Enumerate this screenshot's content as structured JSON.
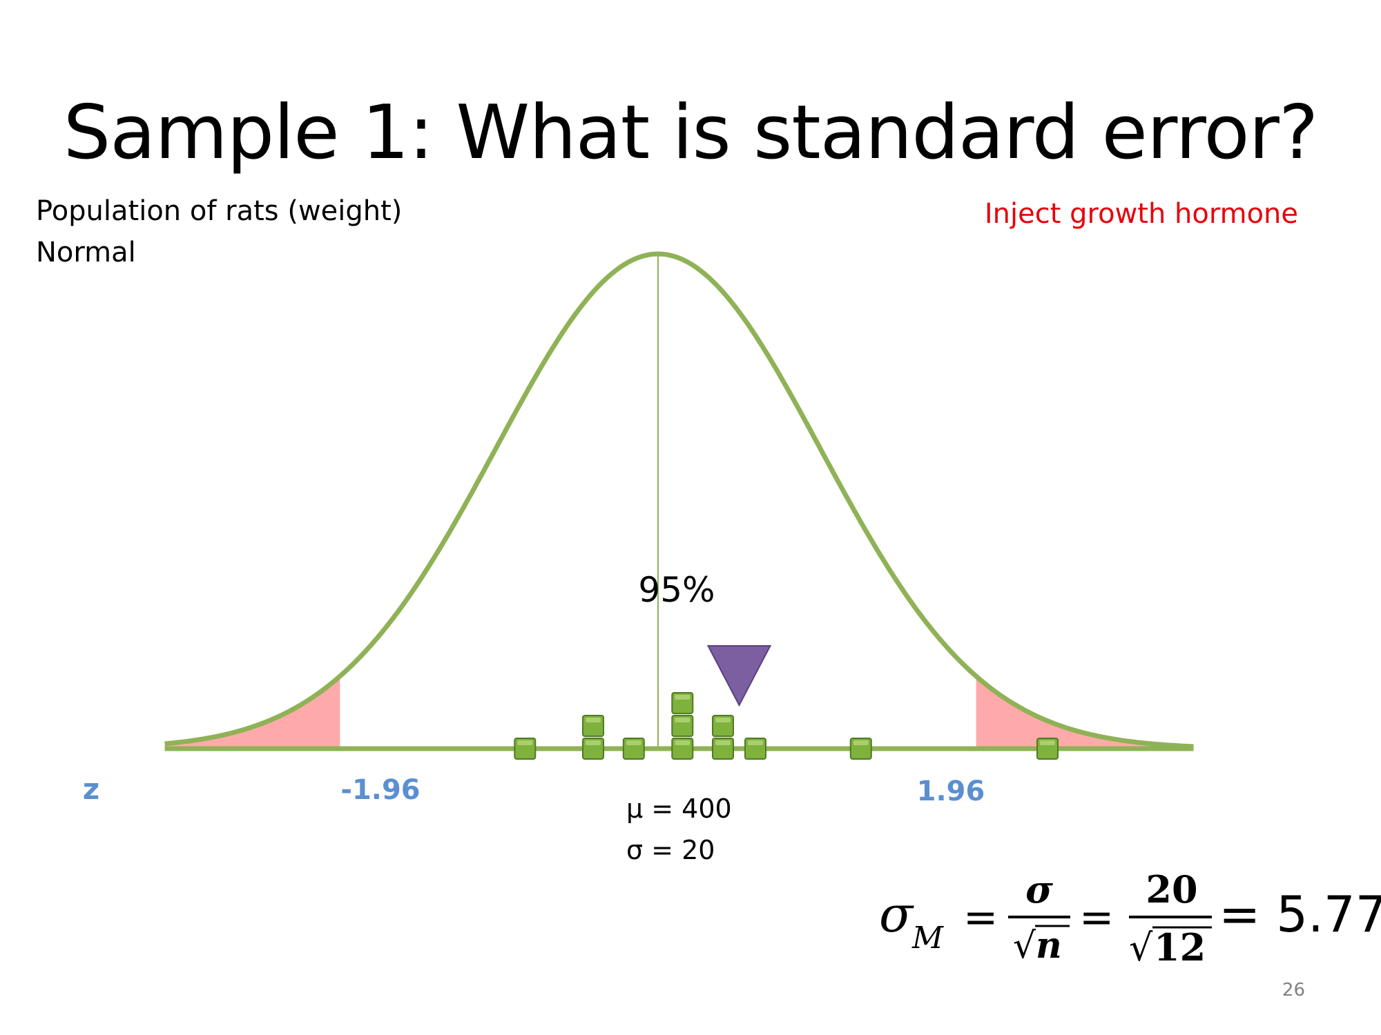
{
  "title": "Sample 1: What is standard error?",
  "population_label": "Population of rats (weight)",
  "distribution_label": "Normal",
  "treatment_label": "Inject growth hormone",
  "center_percent": "95%",
  "z_axis": {
    "label": "z",
    "left_critical": "-1.96",
    "right_critical": "1.96"
  },
  "population_params": {
    "mean": "μ = 400",
    "sd": "σ = 20"
  },
  "formula": {
    "lhs": "σ",
    "lhs_sub": "M",
    "eq": "=",
    "num1": "σ",
    "den1": "n",
    "num2": "20",
    "den2": "12",
    "result": "= 5.77"
  },
  "sample": {
    "z_values": [
      -0.82,
      -0.4,
      -0.4,
      -0.15,
      0.15,
      0.15,
      0.15,
      0.4,
      0.4,
      0.6,
      1.25,
      2.4
    ],
    "sample_mean_z": 0.5,
    "n": 12
  },
  "tail_area_critical_z": 1.96,
  "colors": {
    "curve": "#8fb256",
    "tail_fill": "#ffaaaa",
    "marker": "#7c5fa0",
    "square": "#7fb13d",
    "z_text": "#5b8fd0",
    "red_text": "#e8000b"
  },
  "page_number": "26"
}
